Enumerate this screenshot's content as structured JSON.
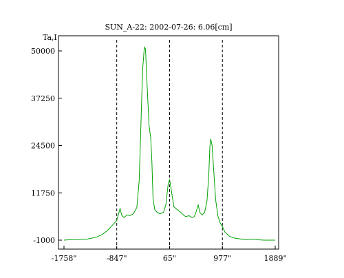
{
  "chart_data": {
    "type": "line",
    "title": "SUN_A-22: 2002-07-26: 6.06[cm]",
    "ylabel": "Ta,I",
    "xlabel": "",
    "xlim": [
      -1758,
      1889
    ],
    "ylim": [
      -1000,
      53500
    ],
    "x_ticks": [
      {
        "value": -1758,
        "label": "-1758\""
      },
      {
        "value": -847,
        "label": "-847\""
      },
      {
        "value": 65,
        "label": "65\""
      },
      {
        "value": 977,
        "label": "977\""
      },
      {
        "value": 1889,
        "label": "1889\""
      }
    ],
    "y_ticks": [
      {
        "value": -1000,
        "label": "-1000"
      },
      {
        "value": 11750,
        "label": "11750"
      },
      {
        "value": 24500,
        "label": "24500"
      },
      {
        "value": 37250,
        "label": "37250"
      },
      {
        "value": 50000,
        "label": "50000"
      }
    ],
    "vlines": [
      -847,
      65,
      977
    ],
    "grid": false,
    "series": [
      {
        "color": "#00a000",
        "points": [
          [
            -1758,
            -1000
          ],
          [
            -1650,
            -850
          ],
          [
            -1500,
            -800
          ],
          [
            -1350,
            -700
          ],
          [
            -1200,
            -200
          ],
          [
            -1100,
            500
          ],
          [
            -1000,
            1700
          ],
          [
            -900,
            3400
          ],
          [
            -847,
            4300
          ],
          [
            -790,
            7500
          ],
          [
            -760,
            5700
          ],
          [
            -720,
            5100
          ],
          [
            -670,
            5800
          ],
          [
            -620,
            5600
          ],
          [
            -560,
            6100
          ],
          [
            -500,
            7800
          ],
          [
            -460,
            15000
          ],
          [
            -430,
            30000
          ],
          [
            -400,
            45000
          ],
          [
            -370,
            51000
          ],
          [
            -350,
            50500
          ],
          [
            -320,
            40000
          ],
          [
            -290,
            30000
          ],
          [
            -260,
            26500
          ],
          [
            -240,
            20000
          ],
          [
            -220,
            10000
          ],
          [
            -190,
            7200
          ],
          [
            -150,
            6500
          ],
          [
            -100,
            6100
          ],
          [
            -40,
            6500
          ],
          [
            0,
            8500
          ],
          [
            40,
            14000
          ],
          [
            65,
            15400
          ],
          [
            100,
            12000
          ],
          [
            140,
            8000
          ],
          [
            200,
            7200
          ],
          [
            260,
            6500
          ],
          [
            310,
            5700
          ],
          [
            350,
            5300
          ],
          [
            400,
            5600
          ],
          [
            450,
            5100
          ],
          [
            490,
            5300
          ],
          [
            520,
            6500
          ],
          [
            560,
            8500
          ],
          [
            590,
            6400
          ],
          [
            630,
            5800
          ],
          [
            670,
            6500
          ],
          [
            710,
            9500
          ],
          [
            740,
            16000
          ],
          [
            760,
            24000
          ],
          [
            775,
            26300
          ],
          [
            800,
            24500
          ],
          [
            830,
            17000
          ],
          [
            860,
            10000
          ],
          [
            900,
            5500
          ],
          [
            940,
            3600
          ],
          [
            977,
            2700
          ],
          [
            1020,
            1200
          ],
          [
            1100,
            0
          ],
          [
            1200,
            -500
          ],
          [
            1300,
            -700
          ],
          [
            1400,
            -850
          ],
          [
            1500,
            -700
          ],
          [
            1600,
            -900
          ],
          [
            1700,
            -1000
          ],
          [
            1889,
            -1000
          ]
        ]
      }
    ]
  }
}
